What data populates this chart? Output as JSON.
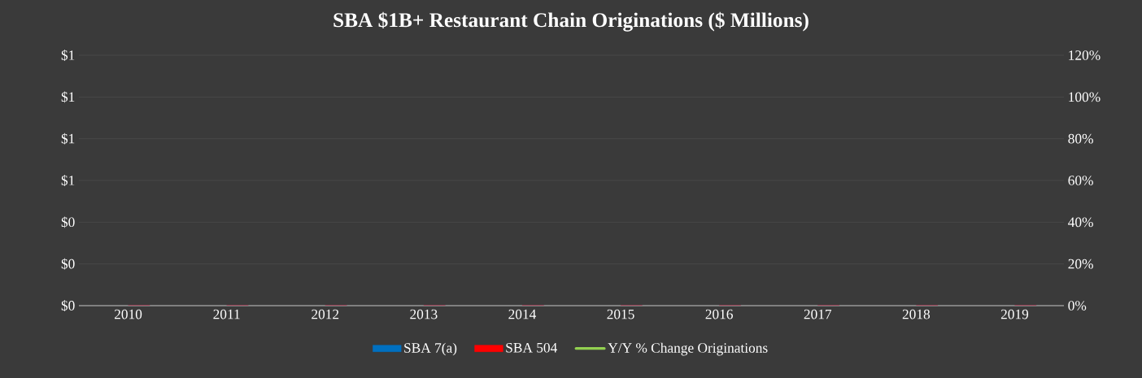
{
  "chart_data": {
    "type": "bar",
    "title": "SBA $1B+ Restaurant Chain Originations ($ Millions)",
    "categories": [
      "2010",
      "2011",
      "2012",
      "2013",
      "2014",
      "2015",
      "2016",
      "2017",
      "2018",
      "2019"
    ],
    "series": [
      {
        "name": "SBA 7(a)",
        "color": "#0070c0",
        "values": [
          0,
          0,
          0,
          0,
          0,
          0,
          0,
          0,
          0,
          0
        ]
      },
      {
        "name": "SBA 504",
        "color": "#ff0000",
        "values": [
          0,
          0,
          0,
          0,
          0,
          0,
          0,
          0,
          0,
          0
        ]
      },
      {
        "name": "Y/Y % Change Originations",
        "type": "line",
        "color": "#92d050",
        "values": [
          null,
          null,
          null,
          null,
          null,
          null,
          null,
          null,
          null,
          null
        ]
      }
    ],
    "ylim": [
      0,
      1.2
    ],
    "yticks": [
      {
        "value": 0,
        "label": "$0"
      },
      {
        "value": 0.2,
        "label": "$0"
      },
      {
        "value": 0.4,
        "label": "$0"
      },
      {
        "value": 0.6,
        "label": "$1"
      },
      {
        "value": 0.8,
        "label": "$1"
      },
      {
        "value": 1.0,
        "label": "$1"
      },
      {
        "value": 1.2,
        "label": "$1"
      }
    ],
    "y2lim": [
      0,
      120
    ],
    "y2ticks": [
      {
        "value": 0,
        "label": "0%"
      },
      {
        "value": 20,
        "label": "20%"
      },
      {
        "value": 40,
        "label": "40%"
      },
      {
        "value": 60,
        "label": "60%"
      },
      {
        "value": 80,
        "label": "80%"
      },
      {
        "value": 100,
        "label": "100%"
      },
      {
        "value": 120,
        "label": "120%"
      }
    ],
    "grid": "y",
    "legend": "bottom"
  }
}
